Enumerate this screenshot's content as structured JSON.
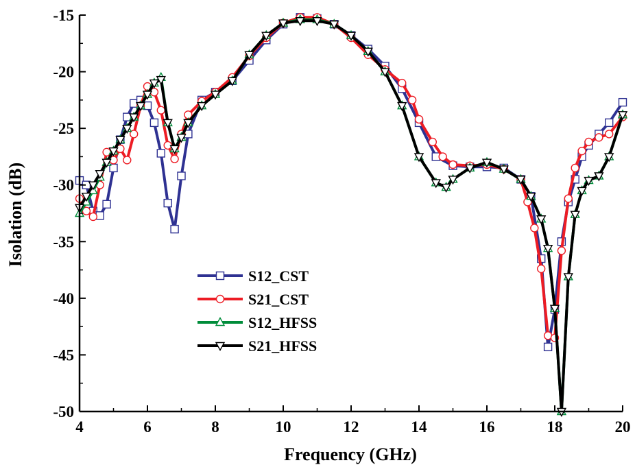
{
  "chart_data": {
    "type": "line",
    "xlabel": "Frequency (GHz)",
    "ylabel": "Isolation (dB)",
    "xlim": [
      4,
      20
    ],
    "ylim": [
      -50,
      -15
    ],
    "xticks": [
      "4",
      "6",
      "8",
      "10",
      "12",
      "14",
      "16",
      "18",
      "20"
    ],
    "yticks": [
      "-15",
      "-20",
      "-25",
      "-30",
      "-35",
      "-40",
      "-45",
      "-50"
    ],
    "grid": false,
    "legend_position": "lower-left",
    "series": [
      {
        "name": "S12_CST",
        "color": "#2e3192",
        "marker": "square",
        "x": [
          4.0,
          4.2,
          4.4,
          4.6,
          4.8,
          5.0,
          5.2,
          5.4,
          5.6,
          5.8,
          6.0,
          6.2,
          6.4,
          6.6,
          6.8,
          7.0,
          7.2,
          7.6,
          8.0,
          8.5,
          9.0,
          9.5,
          10.0,
          10.5,
          11.0,
          11.5,
          12.0,
          12.5,
          13.0,
          13.5,
          14.0,
          14.5,
          15.0,
          15.5,
          16.0,
          16.5,
          17.0,
          17.3,
          17.6,
          17.8,
          18.0,
          18.2,
          18.4,
          18.6,
          18.8,
          19.0,
          19.3,
          19.6,
          20.0
        ],
        "y": [
          -29.6,
          -30.0,
          -32.3,
          -32.7,
          -31.7,
          -28.5,
          -26.0,
          -24.0,
          -22.8,
          -22.5,
          -23.0,
          -24.5,
          -27.2,
          -31.6,
          -33.9,
          -29.2,
          -25.5,
          -22.5,
          -21.8,
          -20.8,
          -19.0,
          -17.2,
          -15.8,
          -15.2,
          -15.3,
          -15.8,
          -16.8,
          -18.0,
          -19.5,
          -21.5,
          -24.5,
          -27.5,
          -28.3,
          -28.4,
          -28.4,
          -28.5,
          -29.5,
          -31.0,
          -36.5,
          -44.3,
          -41.0,
          -35.0,
          -31.5,
          -29.5,
          -27.5,
          -26.5,
          -25.5,
          -24.5,
          -22.7
        ]
      },
      {
        "name": "S21_CST",
        "color": "#ed1c24",
        "marker": "circle",
        "x": [
          4.0,
          4.2,
          4.4,
          4.6,
          4.8,
          5.0,
          5.2,
          5.4,
          5.6,
          5.8,
          6.0,
          6.2,
          6.4,
          6.6,
          6.8,
          7.0,
          7.2,
          7.6,
          8.0,
          8.5,
          9.0,
          9.5,
          10.0,
          10.5,
          11.0,
          11.5,
          12.0,
          12.5,
          13.0,
          13.5,
          13.8,
          14.0,
          14.4,
          14.7,
          15.0,
          15.5,
          16.0,
          16.5,
          17.0,
          17.2,
          17.4,
          17.6,
          17.8,
          18.0,
          18.2,
          18.4,
          18.6,
          18.8,
          19.0,
          19.3,
          19.6,
          20.0
        ],
        "y": [
          -31.2,
          -32.3,
          -32.8,
          -30.0,
          -27.1,
          -27.8,
          -26.8,
          -27.8,
          -25.5,
          -23.0,
          -21.3,
          -21.8,
          -23.4,
          -26.5,
          -27.7,
          -25.5,
          -23.8,
          -22.6,
          -21.8,
          -20.5,
          -18.6,
          -17.0,
          -15.7,
          -15.2,
          -15.2,
          -15.8,
          -17.0,
          -18.5,
          -19.8,
          -21.0,
          -22.5,
          -24.2,
          -26.2,
          -27.5,
          -28.2,
          -28.3,
          -28.2,
          -28.6,
          -29.5,
          -31.5,
          -33.8,
          -37.4,
          -43.3,
          -43.5,
          -35.8,
          -31.2,
          -28.5,
          -27.0,
          -26.2,
          -25.8,
          -25.5,
          -24.0
        ]
      },
      {
        "name": "S12_HFSS",
        "color": "#008c3a",
        "marker": "triangle-up",
        "x": [
          4.0,
          4.2,
          4.4,
          4.6,
          4.8,
          5.0,
          5.2,
          5.4,
          5.6,
          5.8,
          6.0,
          6.2,
          6.4,
          6.6,
          6.8,
          7.0,
          7.2,
          7.6,
          8.0,
          8.5,
          9.0,
          9.5,
          10.0,
          10.5,
          11.0,
          11.5,
          12.0,
          12.5,
          13.0,
          13.5,
          14.0,
          14.5,
          14.8,
          15.0,
          15.5,
          16.0,
          16.5,
          17.0,
          17.3,
          17.6,
          17.8,
          18.0,
          18.2,
          18.4,
          18.6,
          18.8,
          19.0,
          19.3,
          19.6,
          20.0
        ],
        "y": [
          -32.5,
          -31.5,
          -30.5,
          -29.3,
          -28.0,
          -27.0,
          -26.0,
          -25.0,
          -24.0,
          -23.0,
          -22.0,
          -21.0,
          -20.5,
          -24.5,
          -26.8,
          -25.8,
          -24.5,
          -23.0,
          -22.0,
          -20.8,
          -18.5,
          -16.8,
          -15.7,
          -15.4,
          -15.4,
          -15.8,
          -16.8,
          -18.2,
          -20.0,
          -23.0,
          -27.5,
          -29.8,
          -30.2,
          -29.5,
          -28.5,
          -28.0,
          -28.6,
          -29.5,
          -31.0,
          -33.0,
          -35.6,
          -40.9,
          -50.0,
          -38.1,
          -32.6,
          -30.5,
          -29.6,
          -29.2,
          -27.5,
          -23.8
        ]
      },
      {
        "name": "S21_HFSS",
        "color": "#000000",
        "marker": "triangle-down",
        "x": [
          4.0,
          4.2,
          4.4,
          4.6,
          4.8,
          5.0,
          5.2,
          5.4,
          5.6,
          5.8,
          6.0,
          6.2,
          6.4,
          6.6,
          6.8,
          7.0,
          7.2,
          7.6,
          8.0,
          8.5,
          9.0,
          9.5,
          10.0,
          10.5,
          11.0,
          11.5,
          12.0,
          12.5,
          13.0,
          13.5,
          14.0,
          14.5,
          14.8,
          15.0,
          15.5,
          16.0,
          16.5,
          17.0,
          17.3,
          17.6,
          17.8,
          18.0,
          18.2,
          18.4,
          18.6,
          18.8,
          19.0,
          19.3,
          19.6,
          20.0
        ],
        "y": [
          -32.0,
          -31.0,
          -30.0,
          -29.0,
          -28.0,
          -27.0,
          -26.0,
          -25.0,
          -24.0,
          -23.0,
          -22.0,
          -21.0,
          -20.7,
          -24.5,
          -26.8,
          -25.8,
          -24.5,
          -23.0,
          -22.0,
          -20.8,
          -18.5,
          -16.8,
          -15.7,
          -15.5,
          -15.5,
          -15.8,
          -16.8,
          -18.2,
          -20.0,
          -23.0,
          -27.5,
          -29.8,
          -30.2,
          -29.5,
          -28.5,
          -28.0,
          -28.6,
          -29.5,
          -31.0,
          -33.0,
          -35.6,
          -40.9,
          -50.0,
          -38.1,
          -32.6,
          -30.5,
          -29.6,
          -29.2,
          -27.5,
          -23.8
        ]
      }
    ]
  }
}
